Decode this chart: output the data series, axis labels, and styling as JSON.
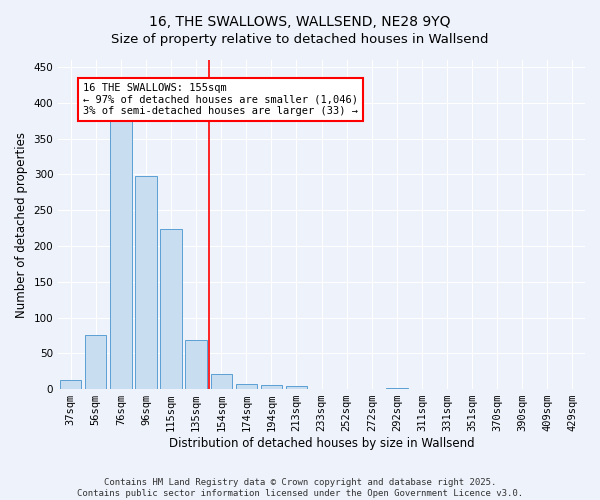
{
  "title_line1": "16, THE SWALLOWS, WALLSEND, NE28 9YQ",
  "title_line2": "Size of property relative to detached houses in Wallsend",
  "xlabel": "Distribution of detached houses by size in Wallsend",
  "ylabel": "Number of detached properties",
  "categories": [
    "37sqm",
    "56sqm",
    "76sqm",
    "96sqm",
    "115sqm",
    "135sqm",
    "154sqm",
    "174sqm",
    "194sqm",
    "213sqm",
    "233sqm",
    "252sqm",
    "272sqm",
    "292sqm",
    "311sqm",
    "331sqm",
    "351sqm",
    "370sqm",
    "390sqm",
    "409sqm",
    "429sqm"
  ],
  "values": [
    13,
    75,
    378,
    298,
    224,
    68,
    21,
    7,
    6,
    4,
    0,
    0,
    0,
    1,
    0,
    0,
    0,
    0,
    0,
    0,
    0
  ],
  "bar_color": "#c9ddf0",
  "bar_edge_color": "#5a9fd4",
  "ylim": [
    0,
    460
  ],
  "yticks": [
    0,
    50,
    100,
    150,
    200,
    250,
    300,
    350,
    400,
    450
  ],
  "annotation_title": "16 THE SWALLOWS: 155sqm",
  "annotation_line1": "← 97% of detached houses are smaller (1,046)",
  "annotation_line2": "3% of semi-detached houses are larger (33) →",
  "vline_position": 6.5,
  "footer_line1": "Contains HM Land Registry data © Crown copyright and database right 2025.",
  "footer_line2": "Contains public sector information licensed under the Open Government Licence v3.0.",
  "bg_color": "#eef2fb",
  "grid_color": "#ffffff",
  "title_fontsize": 10,
  "axis_label_fontsize": 8.5,
  "tick_fontsize": 7.5,
  "annotation_fontsize": 7.5,
  "footer_fontsize": 6.5
}
